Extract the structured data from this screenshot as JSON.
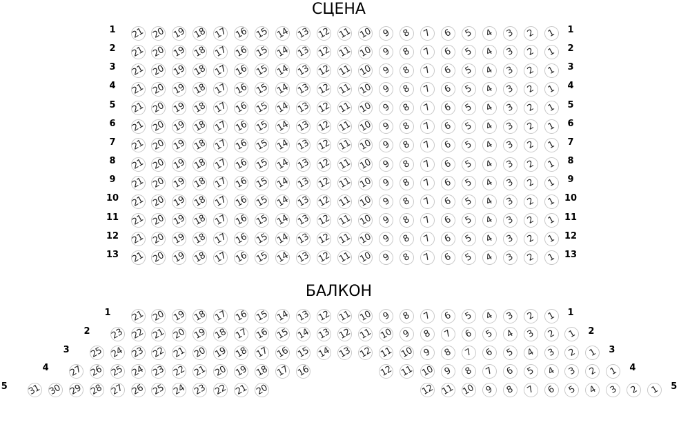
{
  "sections": [
    {
      "title": "СЦЕНА",
      "rows": [
        {
          "label": "1",
          "max": 21,
          "seats": [
            [
              21,
              1
            ]
          ]
        },
        {
          "label": "2",
          "max": 21,
          "seats": [
            [
              21,
              1
            ]
          ]
        },
        {
          "label": "3",
          "max": 21,
          "seats": [
            [
              21,
              1
            ]
          ]
        },
        {
          "label": "4",
          "max": 21,
          "seats": [
            [
              21,
              1
            ]
          ]
        },
        {
          "label": "5",
          "max": 21,
          "seats": [
            [
              21,
              1
            ]
          ]
        },
        {
          "label": "6",
          "max": 21,
          "seats": [
            [
              21,
              1
            ]
          ]
        },
        {
          "label": "7",
          "max": 21,
          "seats": [
            [
              21,
              1
            ]
          ]
        },
        {
          "label": "8",
          "max": 21,
          "seats": [
            [
              21,
              1
            ]
          ]
        },
        {
          "label": "9",
          "max": 21,
          "seats": [
            [
              21,
              1
            ]
          ]
        },
        {
          "label": "10",
          "max": 21,
          "seats": [
            [
              21,
              1
            ]
          ]
        },
        {
          "label": "11",
          "max": 21,
          "seats": [
            [
              21,
              1
            ]
          ]
        },
        {
          "label": "12",
          "max": 21,
          "seats": [
            [
              21,
              1
            ]
          ]
        },
        {
          "label": "13",
          "max": 21,
          "seats": [
            [
              21,
              1
            ]
          ]
        }
      ]
    },
    {
      "title": "БАЛКОН",
      "rows": [
        {
          "label": "1",
          "max": 21,
          "seats": [
            [
              21,
              1
            ]
          ]
        },
        {
          "label": "2",
          "max": 23,
          "seats": [
            [
              23,
              1
            ]
          ]
        },
        {
          "label": "3",
          "max": 25,
          "seats": [
            [
              25,
              1
            ]
          ]
        },
        {
          "label": "4",
          "max": 27,
          "seats": [
            [
              27,
              16
            ],
            [
              12,
              1
            ]
          ]
        },
        {
          "label": "5",
          "max": 31,
          "seats": [
            [
              31,
              20
            ],
            [
              12,
              1
            ]
          ]
        }
      ]
    }
  ],
  "colors": {
    "seat_border": "#c8c8c8",
    "seat_text": "#222222",
    "label": "#000000"
  }
}
